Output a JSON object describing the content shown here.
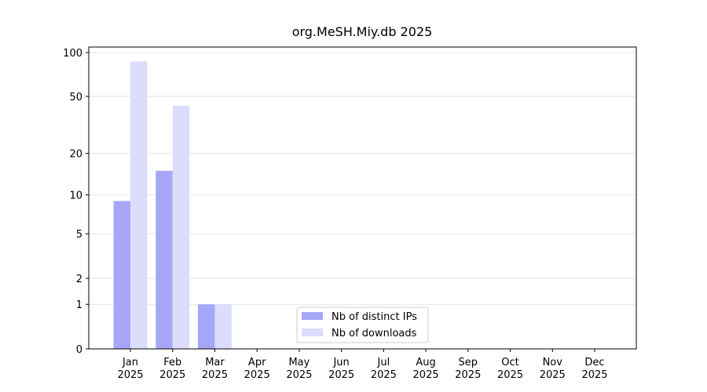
{
  "chart_data": {
    "type": "bar",
    "title": "org.MeSH.Miy.db 2025",
    "categories": [
      "Jan\n2025",
      "Feb\n2025",
      "Mar\n2025",
      "Apr\n2025",
      "May\n2025",
      "Jun\n2025",
      "Jul\n2025",
      "Aug\n2025",
      "Sep\n2025",
      "Oct\n2025",
      "Nov\n2025",
      "Dec\n2025"
    ],
    "series": [
      {
        "name": "Nb of distinct IPs",
        "color": "#a6a6f8",
        "values": [
          9,
          15,
          1,
          null,
          null,
          null,
          null,
          null,
          null,
          null,
          null,
          null
        ]
      },
      {
        "name": "Nb of downloads",
        "color": "#dcdcfc",
        "values": [
          87,
          43,
          1,
          null,
          null,
          null,
          null,
          null,
          null,
          null,
          null,
          null
        ]
      }
    ],
    "yscale": "log1p",
    "ylim": [
      0,
      109
    ],
    "yticks": [
      0,
      1,
      2,
      5,
      10,
      20,
      50,
      100
    ],
    "grid": true,
    "legend": "lower center"
  }
}
